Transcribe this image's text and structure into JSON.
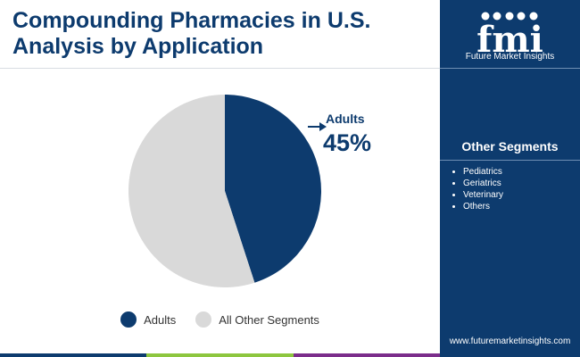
{
  "title": "Compounding Pharmacies in U.S. Analysis by Application",
  "brand": {
    "logo_text": "fmi",
    "name": "Future Market Insights",
    "website": "www.futuremarketinsights.com"
  },
  "other_segments": {
    "title": "Other Segments",
    "items": [
      "Pediatrics",
      "Geriatrics",
      "Veterinary",
      "Others"
    ]
  },
  "chart_data": {
    "type": "pie",
    "title": "Compounding Pharmacies in U.S. Analysis by Application",
    "slices": [
      {
        "name": "Adults",
        "value": 45,
        "color": "#0d3b6e"
      },
      {
        "name": "All Other Segments",
        "value": 55,
        "color": "#d9d9d9"
      }
    ],
    "callout": {
      "label": "Adults",
      "value_text": "45%"
    },
    "legend_position": "bottom"
  },
  "colors": {
    "primary": "#0d3b6e",
    "neutral": "#d9d9d9",
    "bar_segments": [
      "#0d3b6e",
      "#8dc63f",
      "#7b2d8b"
    ]
  }
}
